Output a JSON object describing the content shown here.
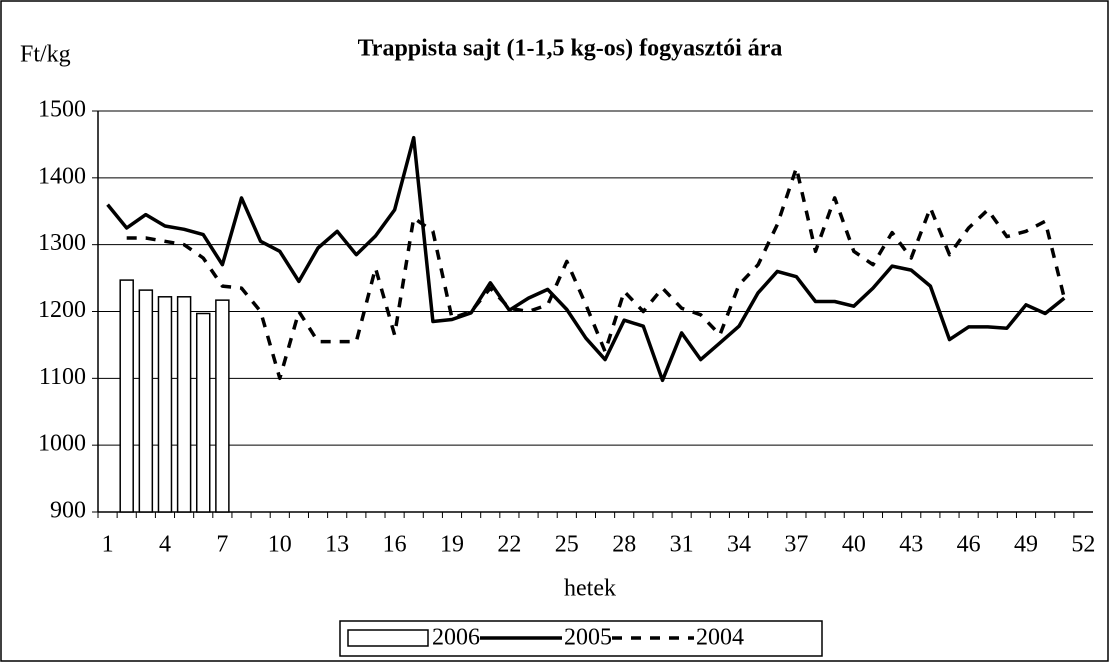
{
  "chart_data": {
    "type": "bar_line",
    "title": "Trappista sajt (1-1,5 kg-os) fogyasztói ára",
    "y_label": "Ft/kg",
    "x_label": "hetek",
    "categories": [
      "1",
      null,
      null,
      "4",
      null,
      null,
      "7",
      null,
      null,
      "10",
      null,
      null,
      "13",
      null,
      null,
      "16",
      null,
      null,
      "19",
      null,
      null,
      "22",
      null,
      null,
      "25",
      null,
      null,
      "28",
      null,
      null,
      "31",
      null,
      null,
      "34",
      null,
      null,
      "37",
      null,
      null,
      "40",
      null,
      null,
      "43",
      null,
      null,
      "46",
      null,
      null,
      "49",
      null,
      null,
      "52"
    ],
    "ylim": [
      900,
      1500
    ],
    "yticks": [
      900,
      1000,
      1100,
      1200,
      1300,
      1400,
      1500
    ],
    "grid": true,
    "legend": "bottom",
    "series": [
      {
        "name": "2006",
        "kind": "bar",
        "color": "#ffffff",
        "values": [
          null,
          1247,
          1232,
          1222,
          1222,
          1197,
          1217,
          null,
          null,
          null,
          null,
          null,
          null,
          null,
          null,
          null,
          null,
          null,
          null,
          null,
          null,
          null,
          null,
          null,
          null,
          null,
          null,
          null,
          null,
          null,
          null,
          null,
          null,
          null,
          null,
          null,
          null,
          null,
          null,
          null,
          null,
          null,
          null,
          null,
          null,
          null,
          null,
          null,
          null,
          null,
          null,
          null
        ]
      },
      {
        "name": "2005",
        "kind": "line",
        "color": "#000000",
        "values": [
          1360,
          1325,
          1345,
          1328,
          1323,
          1315,
          1270,
          1370,
          1305,
          1290,
          1245,
          1295,
          1320,
          1285,
          1313,
          1352,
          1460,
          1185,
          1188,
          1198,
          1243,
          1202,
          1220,
          1233,
          1203,
          1160,
          1128,
          1187,
          1178,
          1097,
          1168,
          1128,
          1153,
          1178,
          1228,
          1260,
          1252,
          1215,
          1215,
          1208,
          1235,
          1268,
          1262,
          1238,
          1158,
          1177,
          1177,
          1175,
          1210,
          1197,
          1220,
          null
        ]
      },
      {
        "name": "2004",
        "kind": "dashed",
        "color": "#000000",
        "values": [
          null,
          1310,
          1310,
          1305,
          1300,
          1280,
          1238,
          1235,
          1200,
          1100,
          1200,
          1155,
          1155,
          1155,
          1265,
          1165,
          1340,
          1320,
          1190,
          1200,
          1235,
          1205,
          1200,
          1210,
          1275,
          1210,
          1140,
          1230,
          1200,
          1235,
          1205,
          1195,
          1165,
          1240,
          1270,
          1330,
          1415,
          1290,
          1370,
          1290,
          1270,
          1318,
          1280,
          1355,
          1285,
          1325,
          1352,
          1312,
          1320,
          1335,
          1220,
          null
        ]
      }
    ]
  }
}
